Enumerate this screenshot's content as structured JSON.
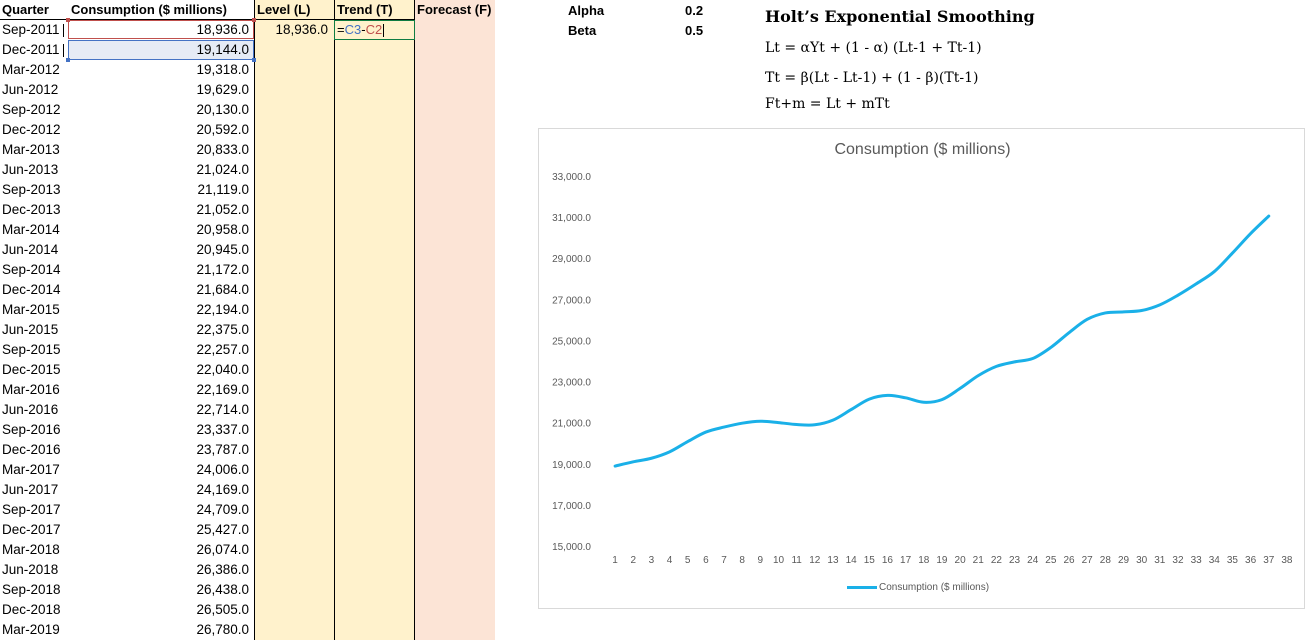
{
  "sheet": {
    "headers": {
      "quarter": "Quarter",
      "consumption": "Consumption ($ millions)",
      "level": "Level (L)",
      "trend": "Trend (T)",
      "forecast": "Forecast (F)"
    },
    "rows": [
      {
        "quarter": "Sep-2011",
        "value": "18,936.0"
      },
      {
        "quarter": "Dec-2011",
        "value": "19,144.0"
      },
      {
        "quarter": "Mar-2012",
        "value": "19,318.0"
      },
      {
        "quarter": "Jun-2012",
        "value": "19,629.0"
      },
      {
        "quarter": "Sep-2012",
        "value": "20,130.0"
      },
      {
        "quarter": "Dec-2012",
        "value": "20,592.0"
      },
      {
        "quarter": "Mar-2013",
        "value": "20,833.0"
      },
      {
        "quarter": "Jun-2013",
        "value": "21,024.0"
      },
      {
        "quarter": "Sep-2013",
        "value": "21,119.0"
      },
      {
        "quarter": "Dec-2013",
        "value": "21,052.0"
      },
      {
        "quarter": "Mar-2014",
        "value": "20,958.0"
      },
      {
        "quarter": "Jun-2014",
        "value": "20,945.0"
      },
      {
        "quarter": "Sep-2014",
        "value": "21,172.0"
      },
      {
        "quarter": "Dec-2014",
        "value": "21,684.0"
      },
      {
        "quarter": "Mar-2015",
        "value": "22,194.0"
      },
      {
        "quarter": "Jun-2015",
        "value": "22,375.0"
      },
      {
        "quarter": "Sep-2015",
        "value": "22,257.0"
      },
      {
        "quarter": "Dec-2015",
        "value": "22,040.0"
      },
      {
        "quarter": "Mar-2016",
        "value": "22,169.0"
      },
      {
        "quarter": "Jun-2016",
        "value": "22,714.0"
      },
      {
        "quarter": "Sep-2016",
        "value": "23,337.0"
      },
      {
        "quarter": "Dec-2016",
        "value": "23,787.0"
      },
      {
        "quarter": "Mar-2017",
        "value": "24,006.0"
      },
      {
        "quarter": "Jun-2017",
        "value": "24,169.0"
      },
      {
        "quarter": "Sep-2017",
        "value": "24,709.0"
      },
      {
        "quarter": "Dec-2017",
        "value": "25,427.0"
      },
      {
        "quarter": "Mar-2018",
        "value": "26,074.0"
      },
      {
        "quarter": "Jun-2018",
        "value": "26,386.0"
      },
      {
        "quarter": "Sep-2018",
        "value": "26,438.0"
      },
      {
        "quarter": "Dec-2018",
        "value": "26,505.0"
      },
      {
        "quarter": "Mar-2019",
        "value": "26,780.0"
      }
    ],
    "level_first": "18,936.0",
    "editing_formula": {
      "eq": "=",
      "ref1": "C3",
      "op": "-",
      "ref2": "C2"
    },
    "colors": {
      "level_col": "#fff2cc",
      "forecast_col": "#fce4d6",
      "ref1": "#4472c4",
      "ref2": "#c0504d",
      "active_border": "#107c41"
    }
  },
  "params": {
    "alpha_label": "Alpha",
    "alpha_value": "0.2",
    "beta_label": "Beta",
    "beta_value": "0.5"
  },
  "formulas": {
    "title": "Holt’s Exponential Smoothing",
    "line1": "Lt = αYt + (1 - α) (Lt-1 + Tt-1)",
    "line2": "Tt = β(Lt - Lt-1) + (1 - β)(Tt-1)",
    "line3": "Ft+m = Lt + mTt"
  },
  "chart_data": {
    "type": "line",
    "title": "Consumption ($ millions)",
    "x": [
      1,
      2,
      3,
      4,
      5,
      6,
      7,
      8,
      9,
      10,
      11,
      12,
      13,
      14,
      15,
      16,
      17,
      18,
      19,
      20,
      21,
      22,
      23,
      24,
      25,
      26,
      27,
      28,
      29,
      30,
      31,
      32,
      33,
      34,
      35,
      36,
      37
    ],
    "x_tick_labels": [
      "1",
      "2",
      "3",
      "4",
      "5",
      "6",
      "7",
      "8",
      "9",
      "10",
      "11",
      "12",
      "13",
      "14",
      "15",
      "16",
      "17",
      "18",
      "19",
      "20",
      "21",
      "22",
      "23",
      "24",
      "25",
      "26",
      "27",
      "28",
      "29",
      "30",
      "31",
      "32",
      "33",
      "34",
      "35",
      "36",
      "37",
      "38"
    ],
    "series": [
      {
        "name": "Consumption ($ millions)",
        "color": "#1ab0e8",
        "values": [
          18936,
          19144,
          19318,
          19629,
          20130,
          20592,
          20833,
          21024,
          21119,
          21052,
          20958,
          20945,
          21172,
          21684,
          22194,
          22375,
          22257,
          22040,
          22169,
          22714,
          23337,
          23787,
          24006,
          24169,
          24709,
          25427,
          26074,
          26386,
          26438,
          26505,
          26780,
          27250,
          27800,
          28400,
          29300,
          30250,
          31100
        ]
      }
    ],
    "y_tick_labels": [
      "15,000.0",
      "17,000.0",
      "19,000.0",
      "21,000.0",
      "23,000.0",
      "25,000.0",
      "27,000.0",
      "29,000.0",
      "31,000.0",
      "33,000.0"
    ],
    "ylim": [
      15000,
      33000
    ],
    "xlim": [
      1,
      38
    ],
    "grid": false,
    "legend": "bottom"
  }
}
